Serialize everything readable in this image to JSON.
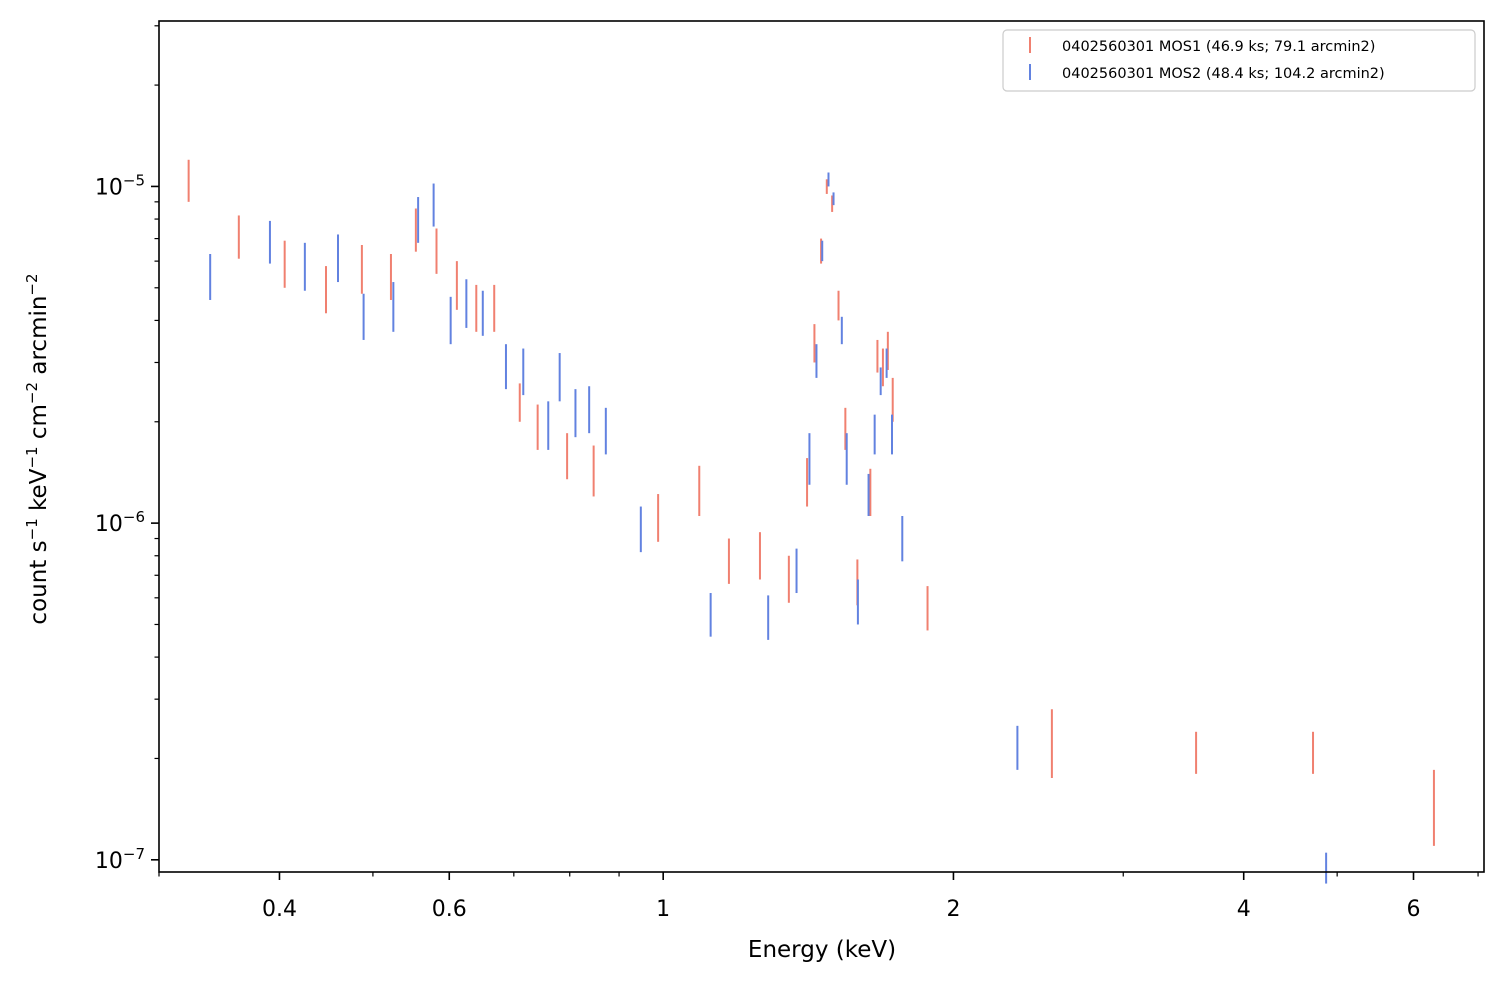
{
  "chart_data": {
    "type": "scatter",
    "xlabel": "Energy (keV)",
    "ylabel_parts": {
      "count": "count s",
      "sexp": "−1",
      "kev": " keV",
      "kevexp": "−1",
      "cm": " cm",
      "cmexp": "−2",
      "arc": " arcmin",
      "arcexp": "−2"
    },
    "xscale": "log",
    "yscale": "log",
    "xlim": [
      0.3,
      7.1
    ],
    "ylim": [
      9.2e-08,
      3.1e-05
    ],
    "grid": false,
    "legend_position": "top-right",
    "x_ticks": [
      {
        "value": 0.4,
        "label": "0.4"
      },
      {
        "value": 0.6,
        "label": "0.6"
      },
      {
        "value": 1,
        "label": "1"
      },
      {
        "value": 2,
        "label": "2"
      },
      {
        "value": 4,
        "label": "4"
      },
      {
        "value": 6,
        "label": "6"
      }
    ],
    "x_minor_ticks": [
      0.3,
      0.5,
      0.7,
      0.8,
      0.9,
      3,
      5,
      7
    ],
    "y_ticks": [
      {
        "value": 1e-05,
        "base": "10",
        "exp": "−5"
      },
      {
        "value": 1e-06,
        "base": "10",
        "exp": "−6"
      },
      {
        "value": 1e-07,
        "base": "10",
        "exp": "−7"
      }
    ],
    "series": [
      {
        "name": "0402560301 MOS1 (46.9 ks; 79.1 arcmin2)",
        "color": "#f08070",
        "points": [
          {
            "x": 0.322,
            "y_low": 9e-06,
            "y_high": 1.2e-05
          },
          {
            "x": 0.363,
            "y_low": 6.1e-06,
            "y_high": 8.2e-06
          },
          {
            "x": 0.405,
            "y_low": 5e-06,
            "y_high": 6.9e-06
          },
          {
            "x": 0.447,
            "y_low": 4.2e-06,
            "y_high": 5.8e-06
          },
          {
            "x": 0.487,
            "y_low": 4.8e-06,
            "y_high": 6.7e-06
          },
          {
            "x": 0.522,
            "y_low": 4.6e-06,
            "y_high": 6.3e-06
          },
          {
            "x": 0.554,
            "y_low": 6.4e-06,
            "y_high": 8.6e-06
          },
          {
            "x": 0.582,
            "y_low": 5.5e-06,
            "y_high": 7.5e-06
          },
          {
            "x": 0.611,
            "y_low": 4.3e-06,
            "y_high": 6e-06
          },
          {
            "x": 0.64,
            "y_low": 3.7e-06,
            "y_high": 5.1e-06
          },
          {
            "x": 0.668,
            "y_low": 3.7e-06,
            "y_high": 5.1e-06
          },
          {
            "x": 0.71,
            "y_low": 2e-06,
            "y_high": 2.6e-06
          },
          {
            "x": 0.741,
            "y_low": 1.65e-06,
            "y_high": 2.25e-06
          },
          {
            "x": 0.795,
            "y_low": 1.35e-06,
            "y_high": 1.85e-06
          },
          {
            "x": 0.847,
            "y_low": 1.2e-06,
            "y_high": 1.7e-06
          },
          {
            "x": 0.988,
            "y_low": 8.8e-07,
            "y_high": 1.22e-06
          },
          {
            "x": 1.09,
            "y_low": 1.05e-06,
            "y_high": 1.48e-06
          },
          {
            "x": 1.17,
            "y_low": 6.6e-07,
            "y_high": 9e-07
          },
          {
            "x": 1.26,
            "y_low": 6.8e-07,
            "y_high": 9.4e-07
          },
          {
            "x": 1.35,
            "y_low": 5.8e-07,
            "y_high": 8e-07
          },
          {
            "x": 1.41,
            "y_low": 1.12e-06,
            "y_high": 1.56e-06
          },
          {
            "x": 1.435,
            "y_low": 3e-06,
            "y_high": 3.9e-06
          },
          {
            "x": 1.458,
            "y_low": 5.9e-06,
            "y_high": 7e-06
          },
          {
            "x": 1.478,
            "y_low": 9.5e-06,
            "y_high": 1.05e-05
          },
          {
            "x": 1.497,
            "y_low": 8.4e-06,
            "y_high": 9.4e-06
          },
          {
            "x": 1.52,
            "y_low": 4e-06,
            "y_high": 4.9e-06
          },
          {
            "x": 1.545,
            "y_low": 1.65e-06,
            "y_high": 2.2e-06
          },
          {
            "x": 1.59,
            "y_low": 5.7e-07,
            "y_high": 7.8e-07
          },
          {
            "x": 1.64,
            "y_low": 1.05e-06,
            "y_high": 1.45e-06
          },
          {
            "x": 1.668,
            "y_low": 2.8e-06,
            "y_high": 3.5e-06
          },
          {
            "x": 1.69,
            "y_low": 2.55e-06,
            "y_high": 3.3e-06
          },
          {
            "x": 1.71,
            "y_low": 2.85e-06,
            "y_high": 3.7e-06
          },
          {
            "x": 1.73,
            "y_low": 2e-06,
            "y_high": 2.7e-06
          },
          {
            "x": 1.88,
            "y_low": 4.8e-07,
            "y_high": 6.5e-07
          },
          {
            "x": 2.53,
            "y_low": 1.75e-07,
            "y_high": 2.8e-07
          },
          {
            "x": 3.57,
            "y_low": 1.8e-07,
            "y_high": 2.4e-07
          },
          {
            "x": 4.72,
            "y_low": 1.8e-07,
            "y_high": 2.4e-07
          },
          {
            "x": 6.3,
            "y_low": 1.1e-07,
            "y_high": 1.85e-07
          }
        ]
      },
      {
        "name": "0402560301 MOS2 (48.4 ks; 104.2 arcmin2)",
        "color": "#6282e0",
        "points": [
          {
            "x": 0.339,
            "y_low": 4.6e-06,
            "y_high": 6.3e-06
          },
          {
            "x": 0.391,
            "y_low": 5.9e-06,
            "y_high": 7.9e-06
          },
          {
            "x": 0.425,
            "y_low": 4.9e-06,
            "y_high": 6.8e-06
          },
          {
            "x": 0.46,
            "y_low": 5.2e-06,
            "y_high": 7.2e-06
          },
          {
            "x": 0.489,
            "y_low": 3.5e-06,
            "y_high": 4.8e-06
          },
          {
            "x": 0.525,
            "y_low": 3.7e-06,
            "y_high": 5.2e-06
          },
          {
            "x": 0.557,
            "y_low": 6.8e-06,
            "y_high": 9.3e-06
          },
          {
            "x": 0.578,
            "y_low": 7.6e-06,
            "y_high": 1.02e-05
          },
          {
            "x": 0.602,
            "y_low": 3.4e-06,
            "y_high": 4.7e-06
          },
          {
            "x": 0.625,
            "y_low": 3.8e-06,
            "y_high": 5.3e-06
          },
          {
            "x": 0.65,
            "y_low": 3.6e-06,
            "y_high": 4.9e-06
          },
          {
            "x": 0.687,
            "y_low": 2.5e-06,
            "y_high": 3.4e-06
          },
          {
            "x": 0.716,
            "y_low": 2.4e-06,
            "y_high": 3.3e-06
          },
          {
            "x": 0.76,
            "y_low": 1.65e-06,
            "y_high": 2.3e-06
          },
          {
            "x": 0.781,
            "y_low": 2.3e-06,
            "y_high": 3.2e-06
          },
          {
            "x": 0.811,
            "y_low": 1.8e-06,
            "y_high": 2.5e-06
          },
          {
            "x": 0.838,
            "y_low": 1.85e-06,
            "y_high": 2.55e-06
          },
          {
            "x": 0.872,
            "y_low": 1.6e-06,
            "y_high": 2.2e-06
          },
          {
            "x": 0.948,
            "y_low": 8.2e-07,
            "y_high": 1.12e-06
          },
          {
            "x": 1.12,
            "y_low": 4.6e-07,
            "y_high": 6.2e-07
          },
          {
            "x": 1.285,
            "y_low": 4.5e-07,
            "y_high": 6.1e-07
          },
          {
            "x": 1.375,
            "y_low": 6.2e-07,
            "y_high": 8.4e-07
          },
          {
            "x": 1.418,
            "y_low": 1.3e-06,
            "y_high": 1.85e-06
          },
          {
            "x": 1.442,
            "y_low": 2.7e-06,
            "y_high": 3.4e-06
          },
          {
            "x": 1.462,
            "y_low": 6e-06,
            "y_high": 6.9e-06
          },
          {
            "x": 1.484,
            "y_low": 1e-05,
            "y_high": 1.1e-05
          },
          {
            "x": 1.502,
            "y_low": 8.8e-06,
            "y_high": 9.6e-06
          },
          {
            "x": 1.532,
            "y_low": 3.4e-06,
            "y_high": 4.1e-06
          },
          {
            "x": 1.55,
            "y_low": 1.3e-06,
            "y_high": 1.85e-06
          },
          {
            "x": 1.592,
            "y_low": 5e-07,
            "y_high": 6.8e-07
          },
          {
            "x": 1.633,
            "y_low": 1.05e-06,
            "y_high": 1.4e-06
          },
          {
            "x": 1.657,
            "y_low": 1.6e-06,
            "y_high": 2.1e-06
          },
          {
            "x": 1.681,
            "y_low": 2.4e-06,
            "y_high": 2.9e-06
          },
          {
            "x": 1.705,
            "y_low": 2.7e-06,
            "y_high": 3.3e-06
          },
          {
            "x": 1.727,
            "y_low": 1.6e-06,
            "y_high": 2.1e-06
          },
          {
            "x": 1.77,
            "y_low": 7.7e-07,
            "y_high": 1.05e-06
          },
          {
            "x": 2.33,
            "y_low": 1.85e-07,
            "y_high": 2.5e-07
          },
          {
            "x": 4.87,
            "y_low": 8.5e-08,
            "y_high": 1.05e-07
          }
        ]
      }
    ]
  }
}
